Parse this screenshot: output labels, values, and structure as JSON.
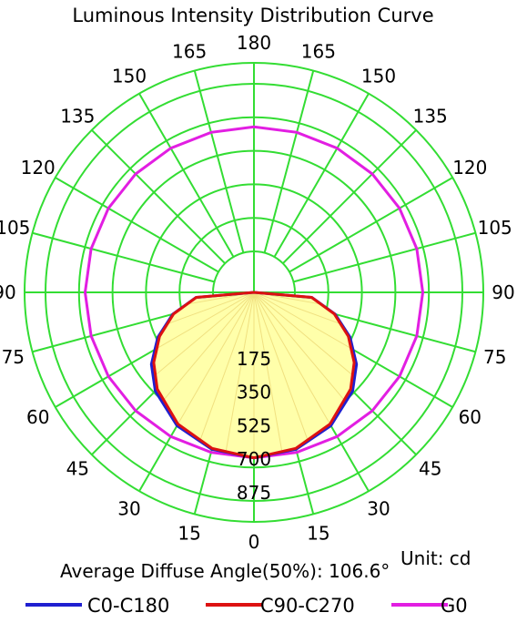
{
  "chart_data": {
    "type": "polar",
    "title": "Luminous Intensity Distribution Curve",
    "unit_label": "Unit: cd",
    "footer_text": "Average Diffuse Angle(50%): 106.6°",
    "radial_ticks": [
      "175",
      "350",
      "525",
      "700",
      "875"
    ],
    "radial_max": 875,
    "angle_labels_left": [
      "0",
      "15",
      "30",
      "45",
      "60",
      "75",
      "90",
      "105",
      "120",
      "135",
      "150",
      "165",
      "180"
    ],
    "angle_labels_right": [
      "15",
      "30",
      "45",
      "60",
      "75",
      "90",
      "105",
      "120",
      "135",
      "150",
      "165"
    ],
    "grid": true,
    "grid_color": "#33dd33",
    "fill_color": "#ffffaa",
    "series": [
      {
        "name": "C0-C180",
        "color": "#1f1fd0",
        "gamma": [
          0,
          15,
          30,
          45,
          55,
          65,
          75,
          85,
          90
        ],
        "values": [
          650,
          635,
          590,
          515,
          440,
          340,
          225,
          90,
          0
        ]
      },
      {
        "name": "C90-C270",
        "color": "#dd1111",
        "gamma": [
          0,
          15,
          30,
          45,
          55,
          65,
          75,
          85,
          90
        ],
        "values": [
          650,
          630,
          580,
          500,
          425,
          330,
          220,
          88,
          0
        ]
      },
      {
        "name": "G0",
        "color": "#e21ee2",
        "gamma": [
          0,
          15,
          30,
          45,
          60,
          75,
          90,
          105,
          120,
          135,
          150,
          165,
          180
        ],
        "values": [
          650,
          651,
          655,
          660,
          664,
          667,
          668,
          667,
          664,
          660,
          655,
          651,
          650
        ]
      }
    ],
    "legend_position": "bottom"
  }
}
